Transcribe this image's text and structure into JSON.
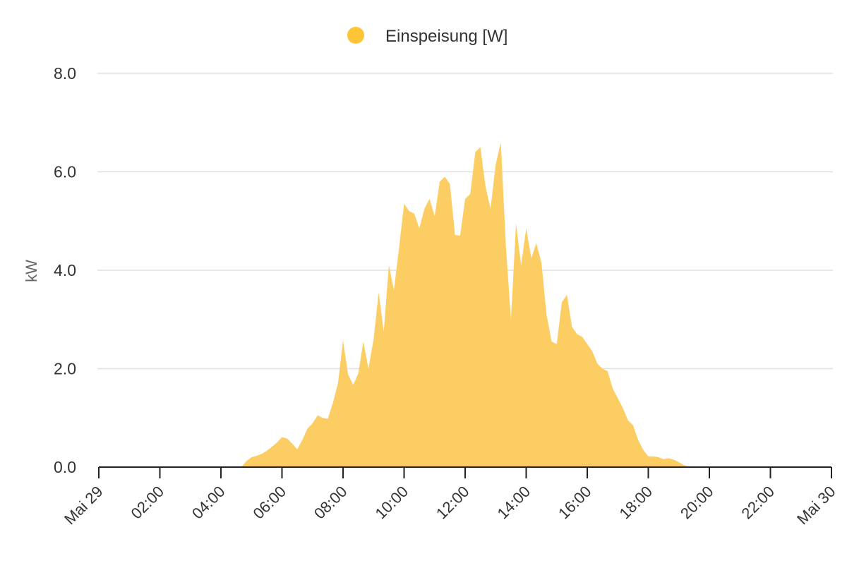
{
  "chart_data": {
    "type": "area",
    "legend": {
      "label": "Einspeisung [W]",
      "placement": "top-center"
    },
    "ylabel": "kW",
    "ylim": [
      0,
      8
    ],
    "yticks": [
      "0.0",
      "2.0",
      "4.0",
      "6.0",
      "8.0"
    ],
    "xlim": [
      "Mai 29 00:00",
      "Mai 30 00:00"
    ],
    "xticks": [
      "Mai 29",
      "02:00",
      "04:00",
      "06:00",
      "08:00",
      "10:00",
      "12:00",
      "14:00",
      "16:00",
      "18:00",
      "20:00",
      "22:00",
      "Mai 30"
    ],
    "grid": true,
    "series": [
      {
        "name": "Einspeisung [W]",
        "color": "#fccd62",
        "x": [
          "00:00",
          "04:40",
          "04:50",
          "05:00",
          "05:10",
          "05:20",
          "05:30",
          "05:40",
          "05:50",
          "06:00",
          "06:10",
          "06:20",
          "06:30",
          "06:40",
          "06:50",
          "07:00",
          "07:10",
          "07:20",
          "07:30",
          "07:40",
          "07:50",
          "08:00",
          "08:10",
          "08:20",
          "08:30",
          "08:40",
          "08:50",
          "09:00",
          "09:10",
          "09:20",
          "09:30",
          "09:40",
          "09:50",
          "10:00",
          "10:10",
          "10:20",
          "10:30",
          "10:40",
          "10:50",
          "11:00",
          "11:10",
          "11:20",
          "11:30",
          "11:40",
          "11:50",
          "12:00",
          "12:10",
          "12:20",
          "12:30",
          "12:40",
          "12:50",
          "13:00",
          "13:10",
          "13:20",
          "13:30",
          "13:40",
          "13:50",
          "14:00",
          "14:10",
          "14:20",
          "14:30",
          "14:40",
          "14:50",
          "15:00",
          "15:10",
          "15:20",
          "15:30",
          "15:40",
          "15:50",
          "16:00",
          "16:10",
          "16:20",
          "16:30",
          "16:40",
          "16:50",
          "17:00",
          "17:10",
          "17:20",
          "17:30",
          "17:40",
          "17:50",
          "18:00",
          "18:10",
          "18:20",
          "18:30",
          "18:40",
          "18:50",
          "19:00",
          "19:10",
          "19:20",
          "19:30",
          "24:00"
        ],
        "values": [
          0.0,
          0.0,
          0.12,
          0.2,
          0.23,
          0.27,
          0.33,
          0.41,
          0.5,
          0.61,
          0.58,
          0.48,
          0.36,
          0.55,
          0.78,
          0.89,
          1.05,
          1.0,
          0.98,
          1.3,
          1.7,
          2.57,
          1.88,
          1.67,
          1.9,
          2.55,
          2.0,
          2.6,
          3.55,
          2.75,
          4.1,
          3.6,
          4.45,
          5.35,
          5.2,
          5.15,
          4.85,
          5.25,
          5.45,
          5.1,
          5.8,
          5.9,
          5.75,
          4.72,
          4.7,
          5.45,
          5.55,
          6.4,
          6.5,
          5.7,
          5.25,
          6.15,
          6.6,
          4.5,
          3.0,
          4.95,
          4.1,
          4.85,
          4.25,
          4.55,
          4.15,
          3.1,
          2.55,
          2.5,
          3.35,
          3.5,
          2.85,
          2.7,
          2.65,
          2.5,
          2.35,
          2.1,
          2.0,
          1.95,
          1.6,
          1.4,
          1.2,
          0.95,
          0.85,
          0.55,
          0.35,
          0.22,
          0.22,
          0.2,
          0.16,
          0.18,
          0.15,
          0.1,
          0.04,
          0.0,
          0.0,
          0.0
        ]
      }
    ]
  }
}
